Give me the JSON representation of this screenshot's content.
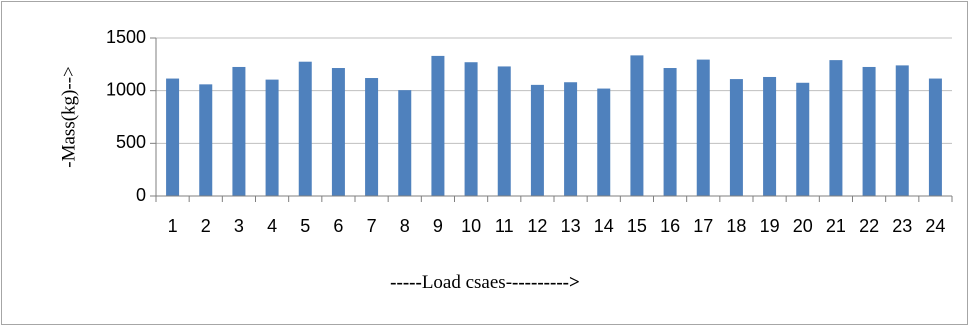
{
  "chart_data": {
    "type": "bar",
    "title": "",
    "ylabel": "-Mass(kg)-->",
    "xlabel_parts": [
      "-----",
      "Load csaes-",
      "--------->"
    ],
    "categories": [
      "1",
      "2",
      "3",
      "4",
      "5",
      "6",
      "7",
      "8",
      "9",
      "10",
      "11",
      "12",
      "13",
      "14",
      "15",
      "16",
      "17",
      "18",
      "19",
      "20",
      "21",
      "22",
      "23",
      "24"
    ],
    "series": [
      {
        "values": [
          1115,
          1060,
          1225,
          1105,
          1275,
          1215,
          1120,
          1005,
          1330,
          1270,
          1230,
          1055,
          1080,
          1020,
          1335,
          1215,
          1295,
          1110,
          1130,
          1075,
          1290,
          1225,
          1240,
          1115
        ]
      }
    ],
    "ylim": [
      0,
      1500
    ],
    "yticks": [
      0,
      500,
      1000,
      1500
    ],
    "grid": true,
    "legend": "none",
    "colors": {
      "bar": "#4f81bd",
      "grid": "#bfbfbf",
      "axis": "#7f7f7f",
      "border": "#a6a6a6"
    }
  }
}
